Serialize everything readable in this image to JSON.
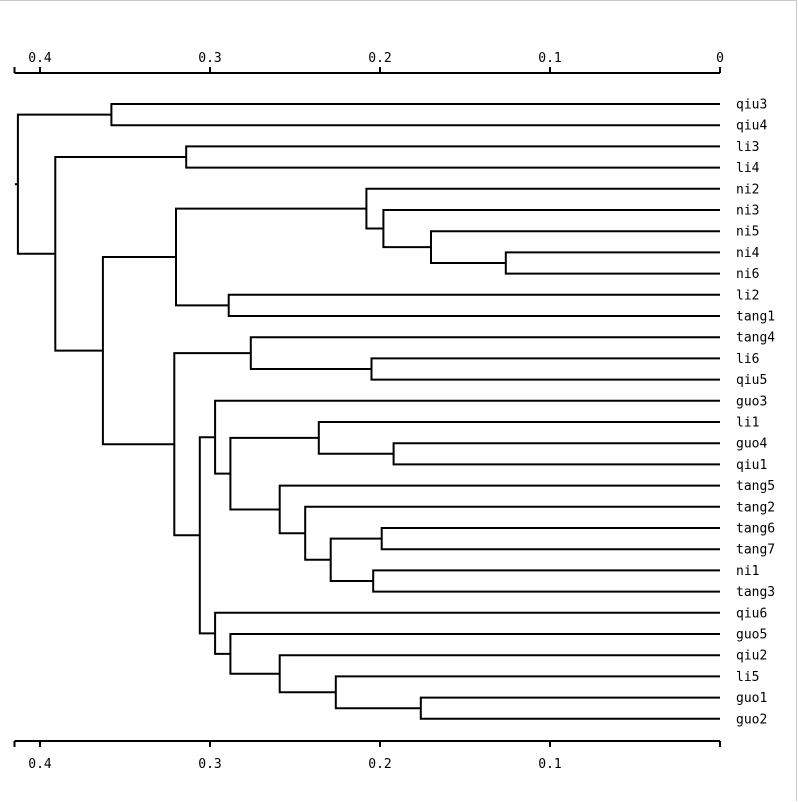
{
  "chart_data": {
    "type": "dendrogram",
    "orientation": "right",
    "axis": {
      "xlim": [
        0.415,
        0.0
      ],
      "ticks": [
        0.4,
        0.3,
        0.2,
        0.1,
        0
      ],
      "tick_labels": [
        "0.4",
        "0.3",
        "0.2",
        "0.1",
        "0"
      ],
      "bottom_tick_labels": [
        "0.4",
        "0.3",
        "0.2",
        "0.1"
      ]
    },
    "leaves": [
      "qiu3",
      "qiu4",
      "li3",
      "li4",
      "ni2",
      "ni3",
      "ni5",
      "ni4",
      "ni6",
      "li2",
      "tang1",
      "tang4",
      "li6",
      "qiu5",
      "guo3",
      "li1",
      "guo4",
      "qiu1",
      "tang5",
      "tang2",
      "tang6",
      "tang7",
      "ni1",
      "tang3",
      "qiu6",
      "guo5",
      "qiu2",
      "li5",
      "guo1",
      "guo2"
    ],
    "merges": [
      {
        "id": "m1",
        "left": "ni4",
        "right": "ni6",
        "height": 0.126
      },
      {
        "id": "m2",
        "left": "ni5",
        "right": "m1",
        "height": 0.17
      },
      {
        "id": "m3",
        "left": "ni3",
        "right": "m2",
        "height": 0.198
      },
      {
        "id": "m4",
        "left": "ni2",
        "right": "m3",
        "height": 0.208
      },
      {
        "id": "m5",
        "left": "li2",
        "right": "tang1",
        "height": 0.289
      },
      {
        "id": "m6",
        "left": "m4",
        "right": "m5",
        "height": 0.32
      },
      {
        "id": "m7",
        "left": "li6",
        "right": "qiu5",
        "height": 0.205
      },
      {
        "id": "m8",
        "left": "tang4",
        "right": "m7",
        "height": 0.276
      },
      {
        "id": "m9",
        "left": "guo4",
        "right": "qiu1",
        "height": 0.192
      },
      {
        "id": "m10",
        "left": "li1",
        "right": "m9",
        "height": 0.236
      },
      {
        "id": "m11",
        "left": "tang6",
        "right": "tang7",
        "height": 0.199
      },
      {
        "id": "m12",
        "left": "ni1",
        "right": "tang3",
        "height": 0.204
      },
      {
        "id": "m13",
        "left": "m11",
        "right": "m12",
        "height": 0.229
      },
      {
        "id": "m14",
        "left": "tang2",
        "right": "m13",
        "height": 0.244
      },
      {
        "id": "m15",
        "left": "tang5",
        "right": "m14",
        "height": 0.259
      },
      {
        "id": "m16",
        "left": "m10",
        "right": "m15",
        "height": 0.288
      },
      {
        "id": "m17",
        "left": "guo3",
        "right": "m16",
        "height": 0.297
      },
      {
        "id": "m18",
        "left": "guo1",
        "right": "guo2",
        "height": 0.176
      },
      {
        "id": "m19",
        "left": "li5",
        "right": "m18",
        "height": 0.226
      },
      {
        "id": "m20",
        "left": "qiu2",
        "right": "m19",
        "height": 0.259
      },
      {
        "id": "m21",
        "left": "guo5",
        "right": "m20",
        "height": 0.288
      },
      {
        "id": "m22",
        "left": "qiu6",
        "right": "m21",
        "height": 0.297
      },
      {
        "id": "m23",
        "left": "m17",
        "right": "m22",
        "height": 0.306
      },
      {
        "id": "m24",
        "left": "m8",
        "right": "m23",
        "height": 0.321
      },
      {
        "id": "m25",
        "left": "m6",
        "right": "m24",
        "height": 0.363
      },
      {
        "id": "m26",
        "left": "li3",
        "right": "li4",
        "height": 0.314
      },
      {
        "id": "m27",
        "left": "m26",
        "right": "m25",
        "height": 0.391
      },
      {
        "id": "m28",
        "left": "qiu3",
        "right": "qiu4",
        "height": 0.358
      },
      {
        "id": "m29",
        "left": "m28",
        "right": "m27",
        "height": 0.413
      }
    ]
  }
}
